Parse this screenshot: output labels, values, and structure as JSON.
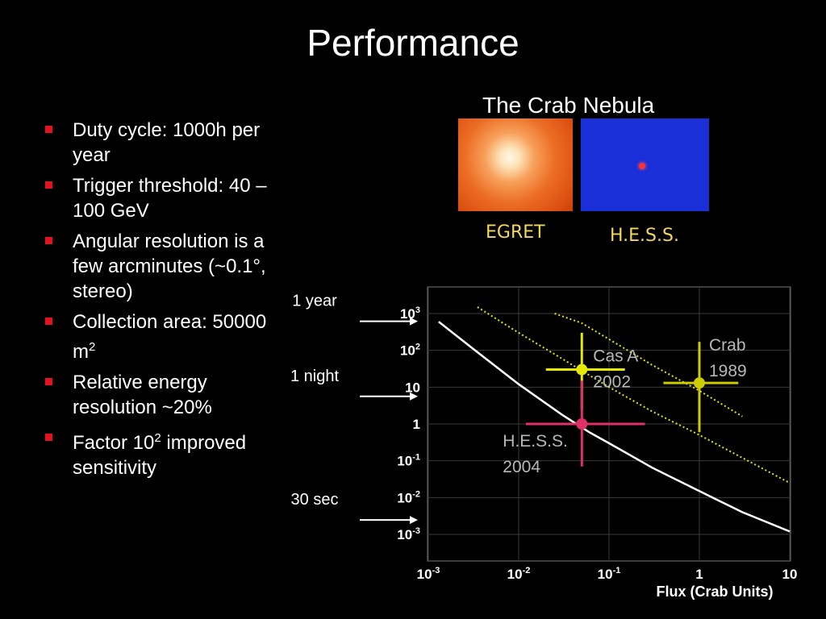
{
  "slide": {
    "title": "Performance",
    "bullets": [
      {
        "text": "Duty cycle: 1000h per year",
        "sup": ""
      },
      {
        "text": "Trigger threshold: 40 – 100 GeV",
        "sup": ""
      },
      {
        "text": "Angular resolution is a few arcminutes (~0.1°, stereo)",
        "sup": ""
      },
      {
        "text": "Collection area: 50000 m",
        "sup": "2"
      },
      {
        "text": "Relative energy resolution ~20%",
        "sup": ""
      },
      {
        "text": "Factor 10",
        "sup": "2",
        "after": " improved sensitivity"
      }
    ],
    "bullet_color": "#e4121e"
  },
  "images": {
    "title": "The Crab Nebula",
    "egret_label": "EGRET",
    "hess_label": "H.E.S.S.",
    "label_color": "#f2d75a"
  },
  "chart_data": {
    "type": "line",
    "xlabel": "Flux (Crab Units)",
    "ylabel": "",
    "x_scale": "log",
    "y_scale": "log",
    "xlim": [
      0.001,
      10
    ],
    "ylim": [
      0.001,
      1000
    ],
    "x_ticks": [
      {
        "v": 0.001,
        "b": "10",
        "e": "-3"
      },
      {
        "v": 0.01,
        "b": "10",
        "e": "-2"
      },
      {
        "v": 0.1,
        "b": "10",
        "e": "-1"
      },
      {
        "v": 1,
        "b": "1",
        "e": ""
      },
      {
        "v": 10,
        "b": "10",
        "e": ""
      }
    ],
    "y_ticks": [
      {
        "v": 1000,
        "b": "10",
        "e": "3"
      },
      {
        "v": 100,
        "b": "10",
        "e": "2"
      },
      {
        "v": 10,
        "b": "10",
        "e": ""
      },
      {
        "v": 1,
        "b": "1",
        "e": ""
      },
      {
        "v": 0.1,
        "b": "10",
        "e": "-1"
      },
      {
        "v": 0.01,
        "b": "10",
        "e": "-2"
      },
      {
        "v": 0.001,
        "b": "10",
        "e": "-3"
      }
    ],
    "series": [
      {
        "style": "solid",
        "color": "#ffffff",
        "x": [
          0.0013,
          0.003,
          0.01,
          0.03,
          0.06,
          0.1,
          0.3,
          1,
          3,
          10
        ],
        "y": [
          600,
          120,
          12,
          1.8,
          0.6,
          0.3,
          0.065,
          0.015,
          0.004,
          0.0012
        ]
      },
      {
        "style": "dotted",
        "color": "#e6e600",
        "x": [
          0.0035,
          0.01,
          0.03,
          0.1,
          0.3,
          1,
          3,
          10
        ],
        "y": [
          1500,
          300,
          60,
          10,
          2.2,
          0.5,
          0.12,
          0.025
        ]
      },
      {
        "style": "dotted",
        "color": "#e6e600",
        "x": [
          0.025,
          0.05,
          0.1,
          0.3,
          1,
          3
        ],
        "y": [
          1000,
          550,
          200,
          40,
          8,
          1.6
        ]
      }
    ],
    "points": [
      {
        "label": "Cas A",
        "sublabel": "2002",
        "x": 0.05,
        "y": 30,
        "color": "#e8e800",
        "xerr": [
          0.02,
          0.15
        ],
        "yerr": [
          2.5,
          300
        ]
      },
      {
        "label": "Crab",
        "sublabel": "1989",
        "x": 1,
        "y": 13,
        "color": "#cccc00",
        "xerr": [
          0.4,
          2.7
        ],
        "yerr": [
          0.6,
          170
        ]
      },
      {
        "label": "H.E.S.S.",
        "sublabel": "2004",
        "x": 0.05,
        "y": 1,
        "color": "#e0306a",
        "xerr": [
          0.012,
          0.25
        ],
        "yerr": [
          0.07,
          15
        ]
      }
    ],
    "annotations": [
      {
        "text": "1 year",
        "y": 876
      },
      {
        "text": "1 night",
        "y": 8
      },
      {
        "text": "30 sec",
        "y": 0.0035
      }
    ]
  }
}
